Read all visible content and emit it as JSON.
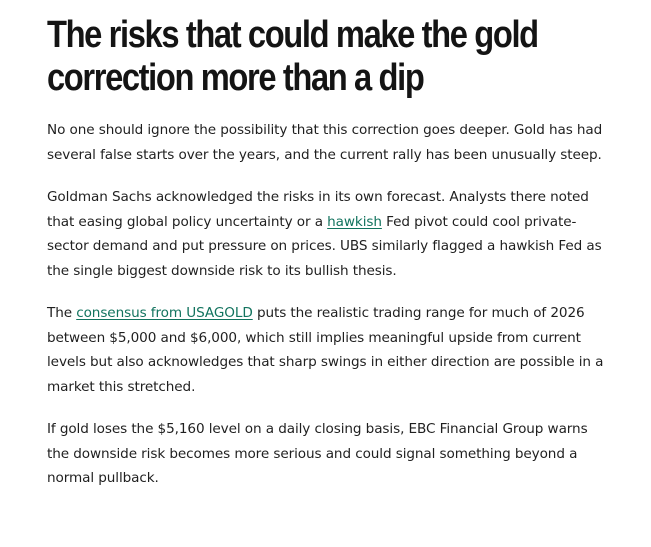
{
  "article": {
    "headline_line1": "The risks that could make the gold",
    "headline_line2": "correction more than a dip",
    "paragraphs": {
      "p1": {
        "text": "No one should ignore the possibility that this correction goes deeper. Gold has had several false starts over the years, and the current rally has been unusually steep."
      },
      "p2": {
        "before": "Goldman Sachs acknowledged the risks in its own forecast. Analysts there noted that easing global policy uncertainty or a ",
        "link": "hawkish",
        "after": " Fed pivot could cool private-sector demand and put pressure on prices. UBS similarly flagged a hawkish Fed as the single biggest downside risk to its bullish thesis."
      },
      "p3": {
        "before": "The ",
        "link": "consensus from USAGOLD",
        "after": " puts the realistic trading range for much of 2026 between $5,000 and $6,000, which still implies meaningful upside from current levels but also acknowledges that sharp swings in either direction are possible in a market this stretched."
      },
      "p4": {
        "text": "If gold loses the $5,160 level on a daily closing basis, EBC Financial Group warns the downside risk becomes more serious and could signal something beyond a normal pullback."
      }
    },
    "colors": {
      "link": "#12735e",
      "text": "#1f1f1f",
      "headline": "#141414"
    }
  }
}
